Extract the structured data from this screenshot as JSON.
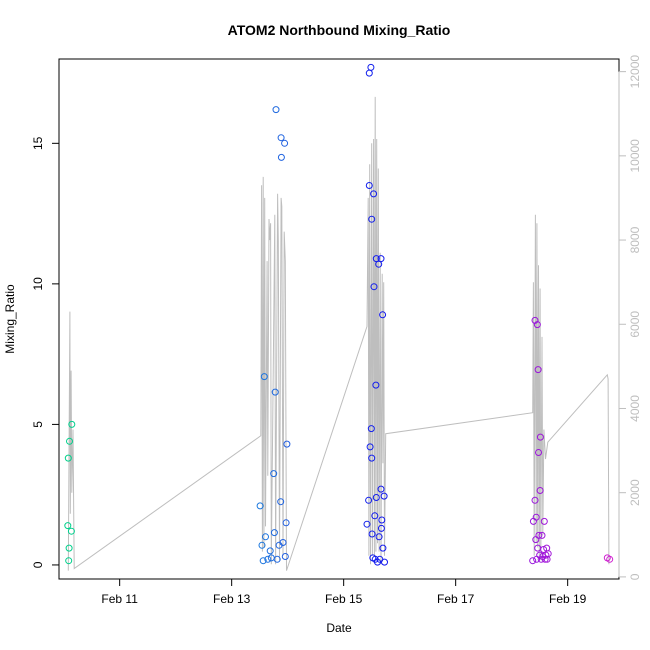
{
  "chart_data": {
    "type": "scatter",
    "title": "ATOM2 Northbound Mixing_Ratio",
    "xlabel": "Date",
    "ylabel": "Mixing_Ratio",
    "x_unit": "date",
    "xlim": [
      "2016-02-09T22:00",
      "2016-02-19T22:00"
    ],
    "ylim": [
      -0.5,
      18
    ],
    "y2lim": [
      -50,
      12300
    ],
    "x_ticks": [
      "Feb 11",
      "Feb 13",
      "Feb 15",
      "Feb 17",
      "Feb 19"
    ],
    "x_tick_dates": [
      "2016-02-11T00:00",
      "2016-02-13T00:00",
      "2016-02-15T00:00",
      "2016-02-17T00:00",
      "2016-02-19T00:00"
    ],
    "y_ticks": [
      0,
      5,
      10,
      15
    ],
    "y2_ticks": [
      0,
      2000,
      4000,
      6000,
      8000,
      10000,
      12000
    ],
    "grid": false,
    "colors": {
      "secondary_line": "#bebebe",
      "box": "#000000",
      "gradient": [
        "#00d08a",
        "#00c8d8",
        "#2060e0",
        "#1010f0",
        "#8010e0",
        "#d020d0"
      ]
    },
    "series": [
      {
        "role": "points",
        "points": [
          {
            "x": "2016-02-10T02:10",
            "y": 0.15
          },
          {
            "x": "2016-02-10T02:20",
            "y": 0.6
          },
          {
            "x": "2016-02-10T01:45",
            "y": 1.4
          },
          {
            "x": "2016-02-10T02:00",
            "y": 3.8
          },
          {
            "x": "2016-02-10T02:30",
            "y": 4.4
          },
          {
            "x": "2016-02-10T03:30",
            "y": 5.0
          },
          {
            "x": "2016-02-10T03:20",
            "y": 1.2
          },
          {
            "x": "2016-02-13T12:10",
            "y": 2.1
          },
          {
            "x": "2016-02-13T13:00",
            "y": 0.7
          },
          {
            "x": "2016-02-13T14:00",
            "y": 6.7
          },
          {
            "x": "2016-02-13T14:30",
            "y": 1.0
          },
          {
            "x": "2016-02-13T13:30",
            "y": 0.15
          },
          {
            "x": "2016-02-13T15:30",
            "y": 0.2
          },
          {
            "x": "2016-02-13T16:30",
            "y": 0.5
          },
          {
            "x": "2016-02-13T17:00",
            "y": 0.25
          },
          {
            "x": "2016-02-13T18:00",
            "y": 3.25
          },
          {
            "x": "2016-02-13T18:40",
            "y": 6.15
          },
          {
            "x": "2016-02-13T18:20",
            "y": 1.15
          },
          {
            "x": "2016-02-13T19:00",
            "y": 16.2
          },
          {
            "x": "2016-02-13T19:30",
            "y": 0.2
          },
          {
            "x": "2016-02-13T20:20",
            "y": 0.7
          },
          {
            "x": "2016-02-13T21:00",
            "y": 2.25
          },
          {
            "x": "2016-02-13T21:10",
            "y": 15.2
          },
          {
            "x": "2016-02-13T21:20",
            "y": 14.5
          },
          {
            "x": "2016-02-13T22:00",
            "y": 0.8
          },
          {
            "x": "2016-02-13T22:40",
            "y": 15.0
          },
          {
            "x": "2016-02-13T23:00",
            "y": 0.3
          },
          {
            "x": "2016-02-13T23:20",
            "y": 1.5
          },
          {
            "x": "2016-02-13T23:40",
            "y": 4.3
          },
          {
            "x": "2016-02-15T10:00",
            "y": 1.45
          },
          {
            "x": "2016-02-15T10:40",
            "y": 2.3
          },
          {
            "x": "2016-02-15T11:00",
            "y": 17.5
          },
          {
            "x": "2016-02-15T11:00",
            "y": 13.5
          },
          {
            "x": "2016-02-15T11:20",
            "y": 4.2
          },
          {
            "x": "2016-02-15T11:40",
            "y": 17.7
          },
          {
            "x": "2016-02-15T12:00",
            "y": 12.3
          },
          {
            "x": "2016-02-15T12:00",
            "y": 3.8
          },
          {
            "x": "2016-02-15T11:50",
            "y": 4.85
          },
          {
            "x": "2016-02-15T12:10",
            "y": 1.1
          },
          {
            "x": "2016-02-15T12:30",
            "y": 0.25
          },
          {
            "x": "2016-02-15T12:50",
            "y": 13.2
          },
          {
            "x": "2016-02-15T13:00",
            "y": 9.9
          },
          {
            "x": "2016-02-15T13:20",
            "y": 1.75
          },
          {
            "x": "2016-02-15T13:30",
            "y": 0.2
          },
          {
            "x": "2016-02-15T13:50",
            "y": 6.4
          },
          {
            "x": "2016-02-15T14:00",
            "y": 2.4
          },
          {
            "x": "2016-02-15T14:00",
            "y": 10.9
          },
          {
            "x": "2016-02-15T14:30",
            "y": 0.1
          },
          {
            "x": "2016-02-15T15:00",
            "y": 10.7
          },
          {
            "x": "2016-02-15T15:10",
            "y": 1.0
          },
          {
            "x": "2016-02-15T15:30",
            "y": 0.2
          },
          {
            "x": "2016-02-15T16:00",
            "y": 10.9
          },
          {
            "x": "2016-02-15T16:10",
            "y": 1.3
          },
          {
            "x": "2016-02-15T16:00",
            "y": 2.7
          },
          {
            "x": "2016-02-15T16:20",
            "y": 1.6
          },
          {
            "x": "2016-02-15T16:40",
            "y": 8.9
          },
          {
            "x": "2016-02-15T16:50",
            "y": 0.6
          },
          {
            "x": "2016-02-15T17:20",
            "y": 2.45
          },
          {
            "x": "2016-02-15T17:30",
            "y": 0.1
          },
          {
            "x": "2016-02-18T09:00",
            "y": 0.15
          },
          {
            "x": "2016-02-18T09:20",
            "y": 1.55
          },
          {
            "x": "2016-02-18T10:00",
            "y": 2.3
          },
          {
            "x": "2016-02-18T10:00",
            "y": 8.7
          },
          {
            "x": "2016-02-18T10:20",
            "y": 0.9
          },
          {
            "x": "2016-02-18T10:30",
            "y": 1.7
          },
          {
            "x": "2016-02-18T10:40",
            "y": 0.2
          },
          {
            "x": "2016-02-18T11:00",
            "y": 8.55
          },
          {
            "x": "2016-02-18T11:10",
            "y": 0.6
          },
          {
            "x": "2016-02-18T11:20",
            "y": 6.95
          },
          {
            "x": "2016-02-18T11:30",
            "y": 4.0
          },
          {
            "x": "2016-02-18T11:40",
            "y": 1.05
          },
          {
            "x": "2016-02-18T12:00",
            "y": 0.35
          },
          {
            "x": "2016-02-18T12:10",
            "y": 2.65
          },
          {
            "x": "2016-02-18T12:20",
            "y": 4.55
          },
          {
            "x": "2016-02-18T12:40",
            "y": 0.2
          },
          {
            "x": "2016-02-18T13:00",
            "y": 1.05
          },
          {
            "x": "2016-02-18T13:20",
            "y": 0.3
          },
          {
            "x": "2016-02-18T13:40",
            "y": 0.55
          },
          {
            "x": "2016-02-18T14:00",
            "y": 1.55
          },
          {
            "x": "2016-02-18T14:20",
            "y": 0.2
          },
          {
            "x": "2016-02-18T14:40",
            "y": 0.35
          },
          {
            "x": "2016-02-18T15:00",
            "y": 0.6
          },
          {
            "x": "2016-02-18T15:10",
            "y": 0.2
          },
          {
            "x": "2016-02-18T15:40",
            "y": 0.4
          },
          {
            "x": "2016-02-19T17:00",
            "y": 0.25
          },
          {
            "x": "2016-02-19T18:00",
            "y": 0.2
          }
        ]
      },
      {
        "role": "secondary_line",
        "axis": "right",
        "points": [
          {
            "x": "2016-02-10T02:00",
            "y": 150
          },
          {
            "x": "2016-02-10T02:40",
            "y": 6300
          },
          {
            "x": "2016-02-10T02:50",
            "y": 1500
          },
          {
            "x": "2016-02-10T03:10",
            "y": 4900
          },
          {
            "x": "2016-02-10T03:30",
            "y": 2000
          },
          {
            "x": "2016-02-10T04:00",
            "y": 3500
          },
          {
            "x": "2016-02-10T04:30",
            "y": 200
          },
          {
            "x": "2016-02-13T12:30",
            "y": 3350
          },
          {
            "x": "2016-02-13T12:50",
            "y": 9300
          },
          {
            "x": "2016-02-13T13:10",
            "y": 600
          },
          {
            "x": "2016-02-13T13:30",
            "y": 9500
          },
          {
            "x": "2016-02-13T13:50",
            "y": 700
          },
          {
            "x": "2016-02-13T14:10",
            "y": 9000
          },
          {
            "x": "2016-02-13T14:30",
            "y": 1200
          },
          {
            "x": "2016-02-13T15:10",
            "y": 7500
          },
          {
            "x": "2016-02-13T15:30",
            "y": 2400
          },
          {
            "x": "2016-02-13T16:00",
            "y": 8500
          },
          {
            "x": "2016-02-13T16:20",
            "y": 8000
          },
          {
            "x": "2016-02-13T16:40",
            "y": 8400
          },
          {
            "x": "2016-02-13T17:00",
            "y": 300
          },
          {
            "x": "2016-02-13T18:30",
            "y": 8600
          },
          {
            "x": "2016-02-13T18:50",
            "y": 300
          },
          {
            "x": "2016-02-13T19:40",
            "y": 9100
          },
          {
            "x": "2016-02-13T20:00",
            "y": 8000
          },
          {
            "x": "2016-02-13T20:30",
            "y": 400
          },
          {
            "x": "2016-02-13T21:10",
            "y": 9000
          },
          {
            "x": "2016-02-13T21:30",
            "y": 8800
          },
          {
            "x": "2016-02-13T22:00",
            "y": 500
          },
          {
            "x": "2016-02-13T22:30",
            "y": 8200
          },
          {
            "x": "2016-02-13T23:00",
            "y": 7500
          },
          {
            "x": "2016-02-13T23:30",
            "y": 150
          },
          {
            "x": "2016-02-15T10:00",
            "y": 5950
          },
          {
            "x": "2016-02-15T10:30",
            "y": 9000
          },
          {
            "x": "2016-02-15T10:50",
            "y": 500
          },
          {
            "x": "2016-02-15T11:10",
            "y": 9800
          },
          {
            "x": "2016-02-15T11:30",
            "y": 300
          },
          {
            "x": "2016-02-15T12:00",
            "y": 10300
          },
          {
            "x": "2016-02-15T12:20",
            "y": 500
          },
          {
            "x": "2016-02-15T12:50",
            "y": 10400
          },
          {
            "x": "2016-02-15T13:10",
            "y": 500
          },
          {
            "x": "2016-02-15T13:30",
            "y": 11400
          },
          {
            "x": "2016-02-15T13:50",
            "y": 600
          },
          {
            "x": "2016-02-15T14:10",
            "y": 10400
          },
          {
            "x": "2016-02-15T14:30",
            "y": 800
          },
          {
            "x": "2016-02-15T14:50",
            "y": 9700
          },
          {
            "x": "2016-02-15T15:10",
            "y": 600
          },
          {
            "x": "2016-02-15T15:40",
            "y": 7700
          },
          {
            "x": "2016-02-15T16:00",
            "y": 300
          },
          {
            "x": "2016-02-15T16:30",
            "y": 7200
          },
          {
            "x": "2016-02-15T16:50",
            "y": 2700
          },
          {
            "x": "2016-02-15T17:10",
            "y": 7000
          },
          {
            "x": "2016-02-15T17:30",
            "y": 500
          },
          {
            "x": "2016-02-15T18:00",
            "y": 3400
          },
          {
            "x": "2016-02-18T09:00",
            "y": 3900
          },
          {
            "x": "2016-02-18T09:20",
            "y": 7000
          },
          {
            "x": "2016-02-18T09:40",
            "y": 500
          },
          {
            "x": "2016-02-18T10:10",
            "y": 8600
          },
          {
            "x": "2016-02-18T10:30",
            "y": 800
          },
          {
            "x": "2016-02-18T10:50",
            "y": 8400
          },
          {
            "x": "2016-02-18T11:10",
            "y": 700
          },
          {
            "x": "2016-02-18T11:30",
            "y": 7400
          },
          {
            "x": "2016-02-18T11:50",
            "y": 500
          },
          {
            "x": "2016-02-18T12:10",
            "y": 6850
          },
          {
            "x": "2016-02-18T12:30",
            "y": 400
          },
          {
            "x": "2016-02-18T13:00",
            "y": 5700
          },
          {
            "x": "2016-02-18T13:20",
            "y": 1000
          },
          {
            "x": "2016-02-18T13:50",
            "y": 3500
          },
          {
            "x": "2016-02-18T14:30",
            "y": 2800
          },
          {
            "x": "2016-02-18T15:30",
            "y": 3200
          },
          {
            "x": "2016-02-19T17:00",
            "y": 4800
          },
          {
            "x": "2016-02-19T17:20",
            "y": 4700
          },
          {
            "x": "2016-02-19T17:40",
            "y": 300
          }
        ]
      }
    ]
  }
}
